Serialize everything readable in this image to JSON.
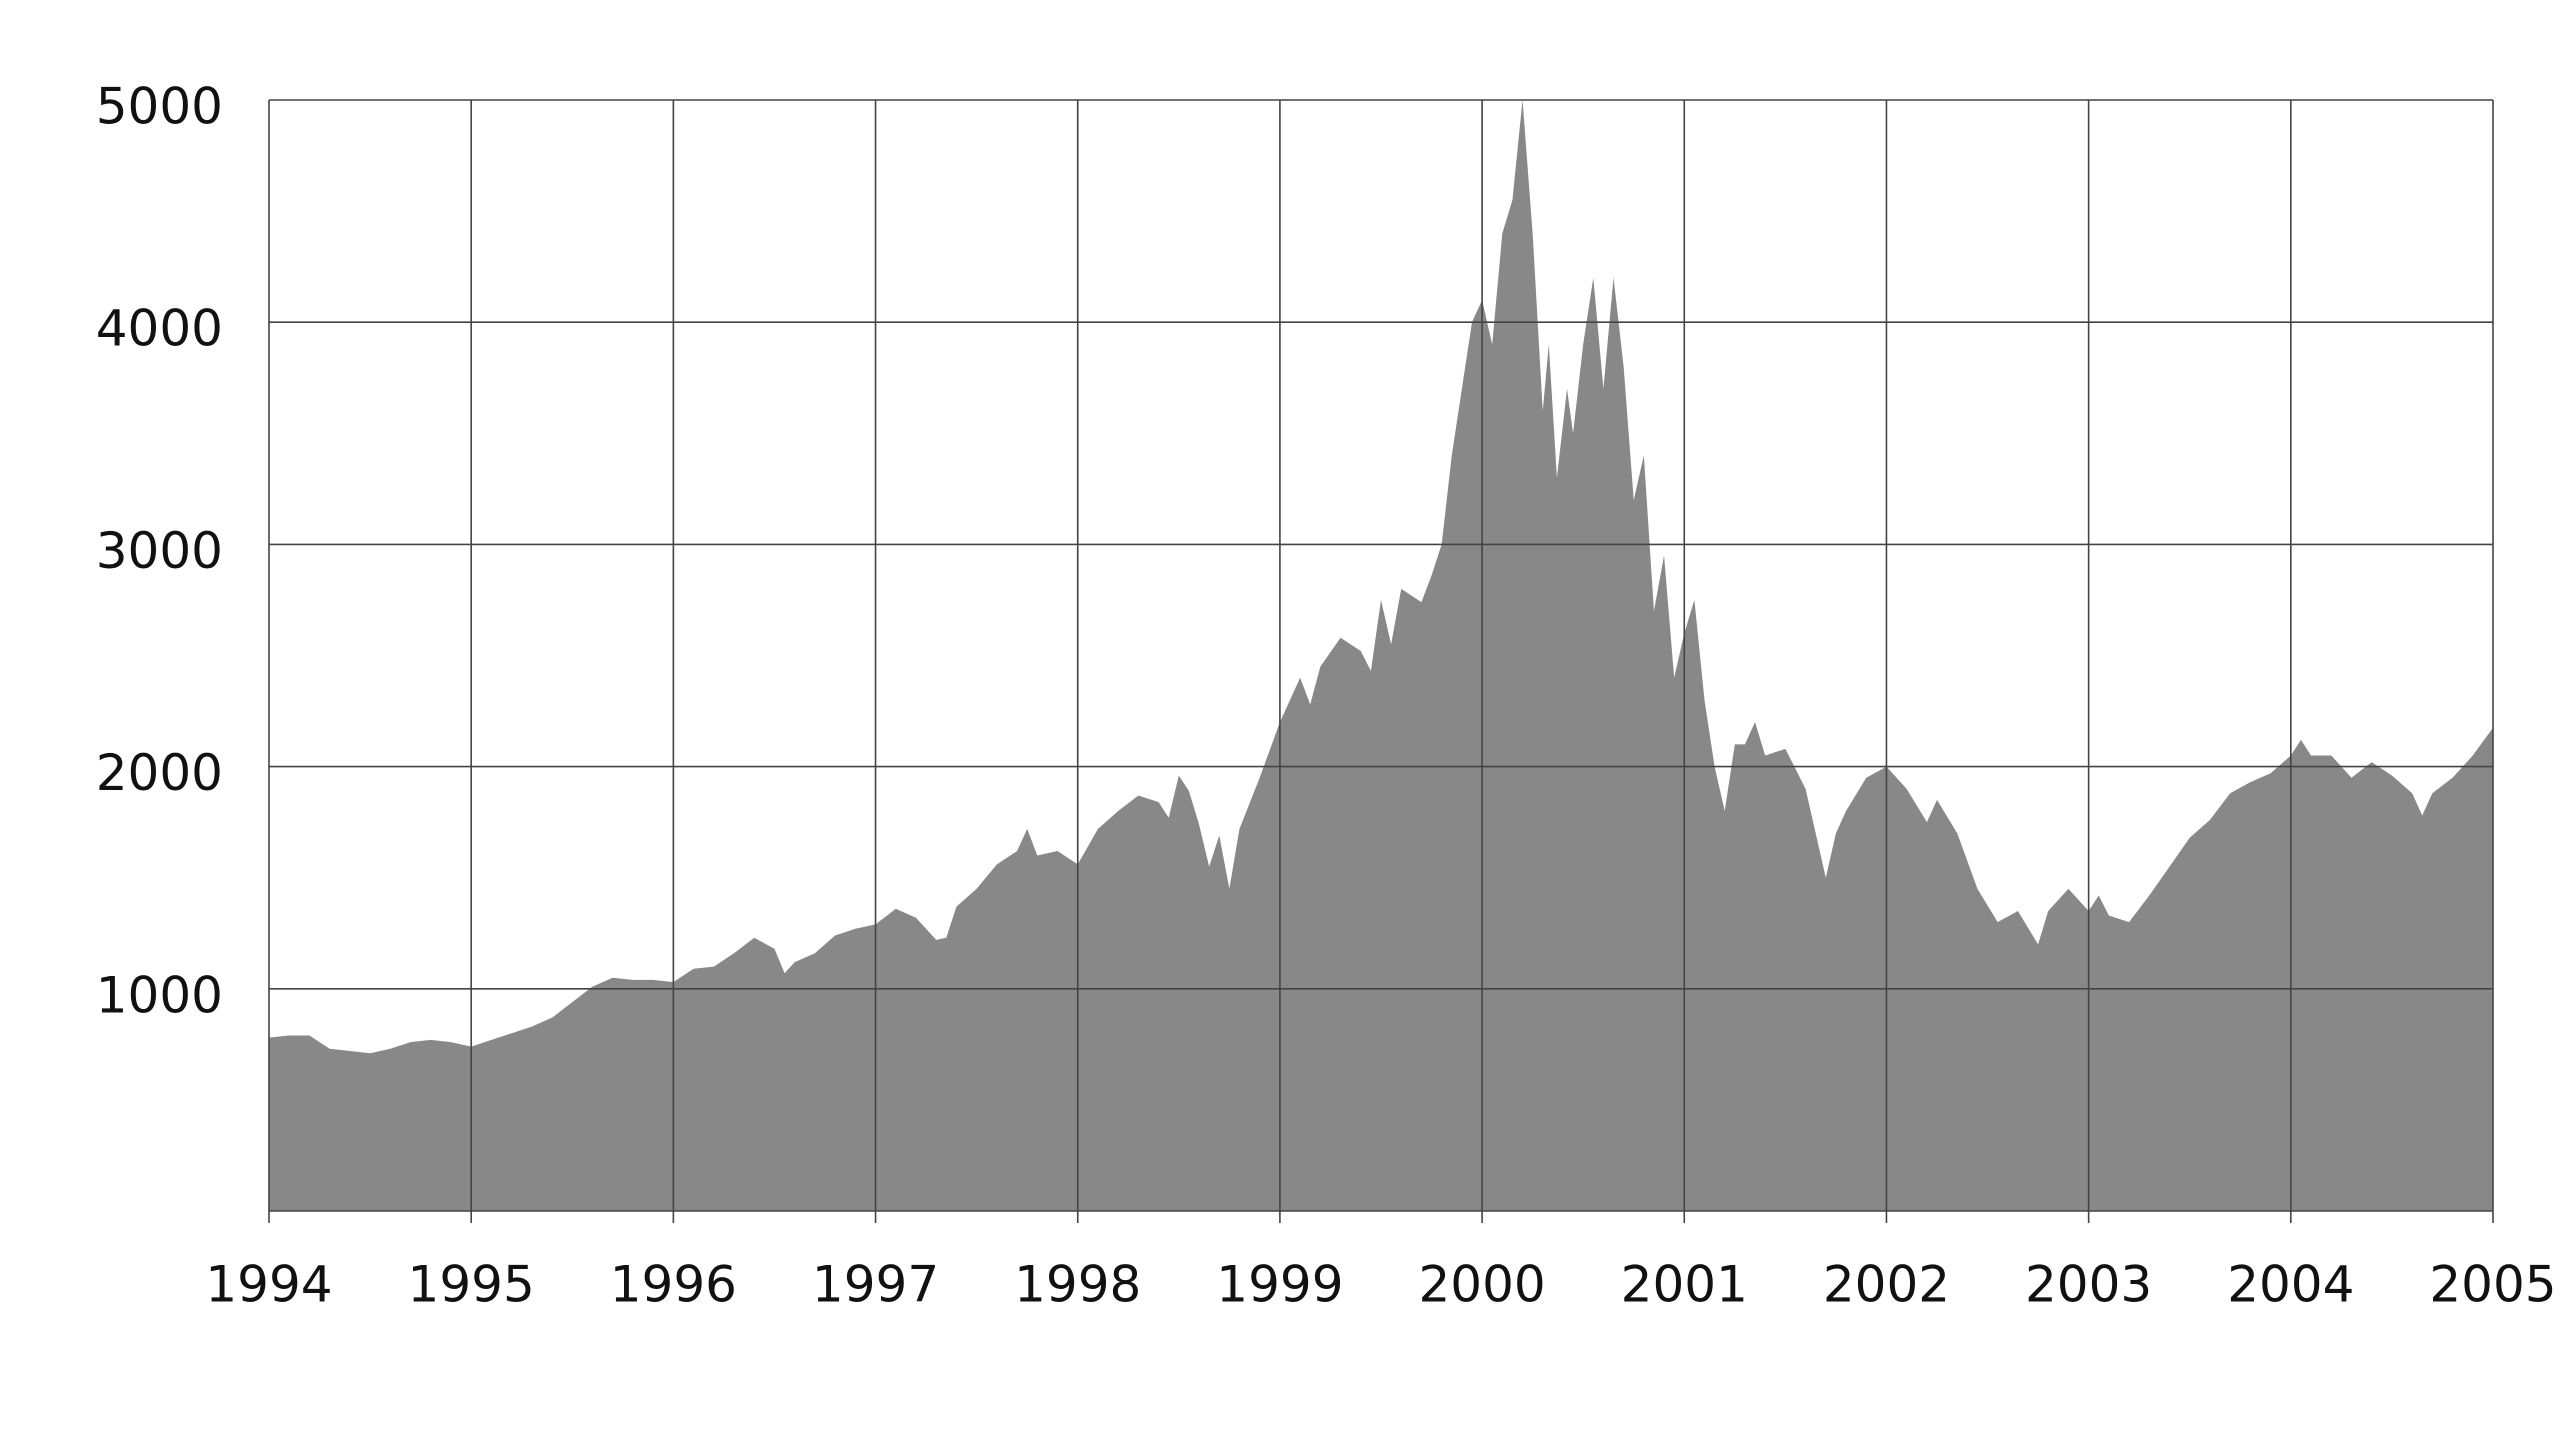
{
  "chart_data": {
    "type": "area",
    "color": "#888888",
    "grid": true,
    "xlim": [
      1994,
      2005
    ],
    "xticks": [
      1994,
      1995,
      1996,
      1997,
      1998,
      1999,
      2000,
      2001,
      2002,
      2003,
      2004,
      2005
    ],
    "ylim": [
      0,
      5000
    ],
    "yticks": [
      1000,
      2000,
      3000,
      4000,
      5000
    ],
    "x": [
      1994.0,
      1994.1,
      1994.2,
      1994.3,
      1994.4,
      1994.5,
      1994.6,
      1994.7,
      1994.8,
      1994.9,
      1995.0,
      1995.1,
      1995.2,
      1995.3,
      1995.4,
      1995.5,
      1995.6,
      1995.7,
      1995.8,
      1995.9,
      1996.0,
      1996.1,
      1996.2,
      1996.3,
      1996.4,
      1996.5,
      1996.55,
      1996.6,
      1996.7,
      1996.8,
      1996.9,
      1997.0,
      1997.1,
      1997.2,
      1997.3,
      1997.35,
      1997.4,
      1997.5,
      1997.6,
      1997.7,
      1997.75,
      1997.8,
      1997.9,
      1998.0,
      1998.1,
      1998.2,
      1998.3,
      1998.4,
      1998.45,
      1998.5,
      1998.55,
      1998.6,
      1998.65,
      1998.7,
      1998.75,
      1998.8,
      1998.9,
      1999.0,
      1999.1,
      1999.15,
      1999.2,
      1999.3,
      1999.4,
      1999.45,
      1999.5,
      1999.55,
      1999.6,
      1999.7,
      1999.75,
      1999.8,
      1999.85,
      1999.9,
      1999.95,
      2000.0,
      2000.05,
      2000.1,
      2000.15,
      2000.2,
      2000.25,
      2000.3,
      2000.33,
      2000.37,
      2000.42,
      2000.45,
      2000.5,
      2000.55,
      2000.6,
      2000.65,
      2000.7,
      2000.75,
      2000.8,
      2000.85,
      2000.9,
      2000.95,
      2001.0,
      2001.05,
      2001.1,
      2001.15,
      2001.2,
      2001.25,
      2001.3,
      2001.35,
      2001.4,
      2001.5,
      2001.6,
      2001.7,
      2001.75,
      2001.8,
      2001.9,
      2002.0,
      2002.1,
      2002.2,
      2002.25,
      2002.35,
      2002.45,
      2002.55,
      2002.65,
      2002.75,
      2002.8,
      2002.9,
      2003.0,
      2003.05,
      2003.1,
      2003.2,
      2003.3,
      2003.4,
      2003.5,
      2003.6,
      2003.7,
      2003.8,
      2003.9,
      2004.0,
      2004.05,
      2004.1,
      2004.2,
      2004.3,
      2004.4,
      2004.5,
      2004.6,
      2004.65,
      2004.7,
      2004.8,
      2004.9,
      2005.0
    ],
    "values": [
      780,
      790,
      790,
      730,
      720,
      710,
      730,
      760,
      770,
      760,
      740,
      770,
      800,
      830,
      870,
      940,
      1010,
      1050,
      1040,
      1040,
      1030,
      1090,
      1100,
      1160,
      1230,
      1180,
      1070,
      1120,
      1160,
      1240,
      1270,
      1290,
      1360,
      1320,
      1220,
      1230,
      1370,
      1450,
      1560,
      1620,
      1720,
      1600,
      1620,
      1560,
      1720,
      1800,
      1870,
      1840,
      1770,
      1960,
      1890,
      1740,
      1550,
      1690,
      1450,
      1720,
      1950,
      2200,
      2400,
      2280,
      2450,
      2580,
      2520,
      2430,
      2750,
      2550,
      2800,
      2740,
      2860,
      3000,
      3400,
      3700,
      4000,
      4100,
      3900,
      4400,
      4550,
      5000,
      4400,
      3600,
      3900,
      3300,
      3700,
      3500,
      3900,
      4200,
      3700,
      4200,
      3800,
      3200,
      3400,
      2700,
      2950,
      2400,
      2600,
      2750,
      2300,
      2000,
      1800,
      2100,
      2100,
      2200,
      2050,
      2080,
      1900,
      1500,
      1700,
      1800,
      1950,
      2000,
      1900,
      1750,
      1850,
      1700,
      1450,
      1300,
      1350,
      1200,
      1350,
      1450,
      1350,
      1420,
      1330,
      1300,
      1420,
      1550,
      1680,
      1760,
      1880,
      1930,
      1970,
      2050,
      2120,
      2050,
      2050,
      1950,
      2020,
      1960,
      1880,
      1780,
      1880,
      1950,
      2050,
      2175
    ]
  }
}
